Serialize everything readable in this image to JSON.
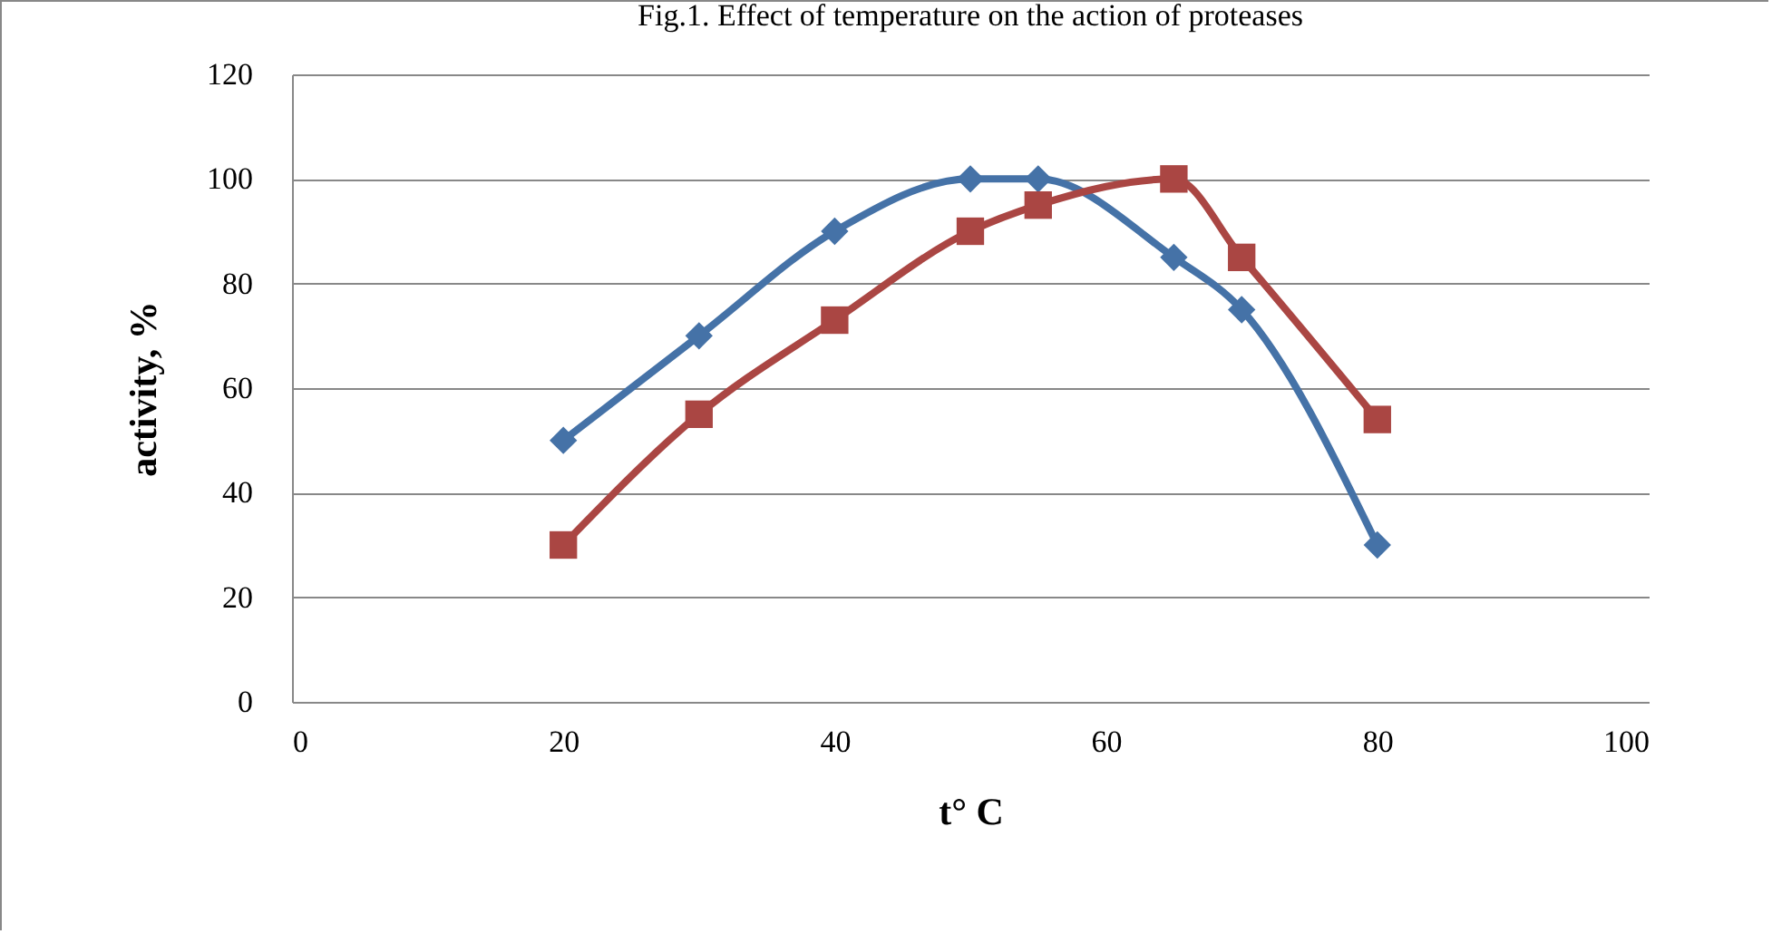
{
  "chart_data": {
    "type": "line",
    "title": "Fig.1. Effect of temperature on the action  of proteases",
    "xlabel": "t° C",
    "ylabel": "activity, %",
    "series": [
      {
        "color": "#4572a7",
        "marker": "diamond",
        "x": [
          20,
          30,
          40,
          50,
          55,
          65,
          70,
          80
        ],
        "values": [
          50,
          70,
          90,
          100,
          100,
          85,
          75,
          30
        ]
      },
      {
        "color": "#aa4643",
        "marker": "square",
        "x": [
          20,
          30,
          40,
          50,
          55,
          65,
          70,
          80
        ],
        "values": [
          30,
          55,
          73,
          90,
          95,
          100,
          85,
          54
        ]
      }
    ],
    "xlim": [
      0,
      100
    ],
    "xticks": [
      0,
      20,
      40,
      60,
      80,
      100
    ],
    "ylim": [
      0,
      120
    ],
    "yticks": [
      0,
      20,
      40,
      60,
      80,
      100,
      120
    ],
    "grid": "y"
  }
}
